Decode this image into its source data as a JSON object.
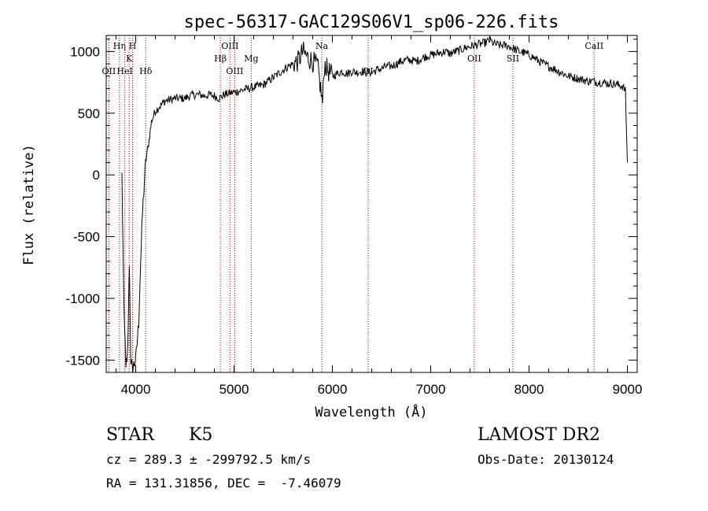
{
  "chart_data": {
    "type": "line",
    "title": "spec-56317-GAC129S06V1_sp06-226.fits",
    "xlabel": "Wavelength (Å)",
    "ylabel": "Flux (relative)",
    "xlim": [
      3700,
      9100
    ],
    "ylim": [
      -1600,
      1130
    ],
    "xticks": [
      4000,
      5000,
      6000,
      7000,
      8000,
      9000
    ],
    "yticks": [
      -1500,
      -1000,
      -500,
      0,
      500,
      1000
    ],
    "grid": false,
    "series": [
      {
        "x": [
          3700,
          3780,
          3830,
          3860,
          3880,
          3900,
          3910,
          3920,
          3935,
          3950,
          3965,
          3975,
          3985,
          4000,
          4030,
          4050,
          4070,
          4100,
          4130,
          4160,
          4200,
          4250,
          4300,
          4350,
          4400,
          4450,
          4500,
          4550,
          4600,
          4650,
          4700,
          4750,
          4800,
          4850,
          4900,
          4950,
          5000,
          5050,
          5100,
          5150,
          5200,
          5250,
          5300,
          5350,
          5400,
          5450,
          5500,
          5550,
          5600,
          5650,
          5700,
          5750,
          5800,
          5850,
          5880,
          5900,
          5920,
          5950,
          6000,
          6050,
          6100,
          6150,
          6200,
          6250,
          6300,
          6350,
          6400,
          6450,
          6500,
          6550,
          6600,
          6650,
          6700,
          6750,
          6800,
          6850,
          6900,
          6950,
          7000,
          7050,
          7100,
          7150,
          7200,
          7250,
          7300,
          7350,
          7400,
          7450,
          7500,
          7550,
          7600,
          7650,
          7700,
          7750,
          7800,
          7850,
          7900,
          7950,
          8000,
          8050,
          8100,
          8150,
          8200,
          8250,
          8300,
          8350,
          8400,
          8450,
          8500,
          8550,
          8600,
          8650,
          8700,
          8750,
          8800,
          8850,
          8900,
          8950,
          8980,
          9000
        ],
        "y": [
          null,
          null,
          null,
          0,
          -1100,
          -1520,
          -1540,
          -1400,
          -700,
          -1500,
          -1580,
          -1550,
          -1530,
          -1500,
          -1200,
          -700,
          -300,
          100,
          250,
          430,
          520,
          560,
          600,
          610,
          620,
          620,
          620,
          640,
          650,
          650,
          640,
          650,
          640,
          620,
          650,
          660,
          670,
          680,
          690,
          700,
          710,
          720,
          730,
          760,
          790,
          820,
          850,
          880,
          900,
          920,
          1000,
          950,
          920,
          880,
          700,
          580,
          900,
          850,
          800,
          820,
          840,
          820,
          840,
          830,
          840,
          830,
          830,
          850,
          860,
          880,
          880,
          900,
          920,
          930,
          930,
          920,
          940,
          960,
          970,
          980,
          990,
          1000,
          980,
          1000,
          1010,
          1030,
          1040,
          1050,
          1060,
          1070,
          1090,
          1060,
          1050,
          1050,
          1040,
          1020,
          1000,
          990,
          970,
          950,
          920,
          900,
          880,
          860,
          840,
          820,
          800,
          790,
          780,
          770,
          760,
          760,
          750,
          750,
          740,
          740,
          730,
          720,
          680,
          100
        ]
      }
    ],
    "lines": [
      {
        "name": "OII",
        "wave": 3727
      },
      {
        "name": "Hη",
        "wave": 3835
      },
      {
        "name": "H",
        "wave": 3968
      },
      {
        "name": "K",
        "wave": 3934
      },
      {
        "name": "HeI",
        "wave": 3889
      },
      {
        "name": "Hδ",
        "wave": 4102
      },
      {
        "name": "Hβ",
        "wave": 4861
      },
      {
        "name": "OIII",
        "wave": 4959
      },
      {
        "name": "OIII",
        "wave": 5007
      },
      {
        "name": "Mg",
        "wave": 5175
      },
      {
        "name": "Na",
        "wave": 5893
      },
      {
        "name": "OI",
        "wave": 6364
      },
      {
        "name": "OII",
        "wave": 7443
      },
      {
        "name": "SII",
        "wave": 7836
      },
      {
        "name": "CaII",
        "wave": 8662
      }
    ]
  },
  "info": {
    "class": "STAR",
    "subclass": "K5",
    "survey": "LAMOST DR2",
    "cz": "cz = 289.3 ± -299792.5 km/s",
    "obs_date": "Obs-Date: 20130124",
    "radec": "RA = 131.31856, DEC =  -7.46079"
  }
}
